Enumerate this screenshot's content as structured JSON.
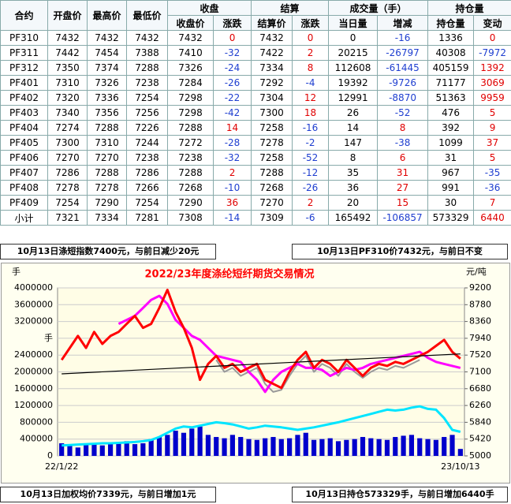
{
  "table": {
    "header_groups": [
      "收盘",
      "结算",
      "成交量（手）",
      "持仓量"
    ],
    "columns": [
      "合约",
      "开盘价",
      "最高价",
      "最低价",
      "收盘价",
      "涨跌",
      "结算价",
      "涨跌",
      "当日量",
      "增减",
      "持仓量",
      "变动"
    ],
    "rows": [
      [
        "PF310",
        "7432",
        "7432",
        "7432",
        "7432",
        "0",
        "7432",
        "0",
        "0",
        "-16",
        "1336",
        "0"
      ],
      [
        "PF311",
        "7442",
        "7454",
        "7388",
        "7410",
        "-32",
        "7422",
        "2",
        "20215",
        "-26797",
        "40308",
        "-7972"
      ],
      [
        "PF312",
        "7350",
        "7374",
        "7288",
        "7326",
        "-24",
        "7334",
        "8",
        "112608",
        "-61445",
        "405159",
        "1392"
      ],
      [
        "PF401",
        "7310",
        "7326",
        "7238",
        "7284",
        "-26",
        "7292",
        "-4",
        "19392",
        "-9726",
        "71177",
        "3069"
      ],
      [
        "PF402",
        "7320",
        "7336",
        "7254",
        "7298",
        "-22",
        "7304",
        "12",
        "12991",
        "-8870",
        "51363",
        "9959"
      ],
      [
        "PF403",
        "7340",
        "7356",
        "7256",
        "7298",
        "-42",
        "7300",
        "18",
        "26",
        "-52",
        "476",
        "5"
      ],
      [
        "PF404",
        "7274",
        "7288",
        "7226",
        "7288",
        "14",
        "7258",
        "-16",
        "14",
        "8",
        "392",
        "9"
      ],
      [
        "PF405",
        "7300",
        "7310",
        "7244",
        "7272",
        "-28",
        "7278",
        "-2",
        "147",
        "-38",
        "1099",
        "37"
      ],
      [
        "PF406",
        "7270",
        "7270",
        "7238",
        "7238",
        "-32",
        "7258",
        "-52",
        "8",
        "6",
        "31",
        "5"
      ],
      [
        "PF407",
        "7286",
        "7288",
        "7286",
        "7288",
        "2",
        "7288",
        "-12",
        "35",
        "31",
        "967",
        "-35"
      ],
      [
        "PF408",
        "7278",
        "7278",
        "7266",
        "7268",
        "-10",
        "7268",
        "-26",
        "36",
        "27",
        "991",
        "-36"
      ],
      [
        "PF409",
        "7254",
        "7290",
        "7254",
        "7290",
        "36",
        "7270",
        "2",
        "20",
        "15",
        "30",
        "7"
      ],
      [
        "小计",
        "7321",
        "7334",
        "7281",
        "7308",
        "-14",
        "7309",
        "-6",
        "165492",
        "-106857",
        "573329",
        "6440"
      ]
    ]
  },
  "notes": [
    "10月13日涤短指数7400元，与前日减少20元",
    "10月13日PF310价7432元，与前日不变",
    "10月13日加权均价7339元，与前日增加1元",
    "10月13日持仓573329手，与前日增加6440手"
  ],
  "chart_data": {
    "type": "line",
    "title": "2022/23年度涤纶短纤期货交易情况",
    "ylabel": "手",
    "y2label": "元/吨",
    "categories": [
      "22/1/22",
      null,
      null,
      null,
      null,
      null,
      null,
      null,
      null,
      null,
      null,
      null,
      null,
      null,
      null,
      null,
      null,
      null,
      null,
      null,
      null,
      null,
      null,
      null,
      null,
      null,
      null,
      null,
      null,
      null,
      null,
      null,
      null,
      null,
      null,
      null,
      null,
      null,
      null,
      null,
      null,
      null,
      null,
      null,
      null,
      null,
      null,
      null,
      null,
      "23/10/13"
    ],
    "ylim": [
      0,
      4000000
    ],
    "yticks": [
      0,
      400000,
      800000,
      1200000,
      1600000,
      2000000,
      2400000,
      {
        "value": 2800000,
        "label": "手"
      },
      3200000,
      3600000,
      4000000
    ],
    "y2lim": [
      5000,
      9200
    ],
    "y2ticks": [
      5000,
      5420,
      5840,
      6260,
      6680,
      7100,
      7520,
      7940,
      8360,
      8780,
      9200
    ],
    "grid": true,
    "series": [
      {
        "type": "bar",
        "color": "#0000cc",
        "values": [
          300000,
          250000,
          200000,
          280000,
          300000,
          250000,
          320000,
          300000,
          350000,
          280000,
          300000,
          400000,
          450000,
          500000,
          600000,
          550000,
          650000,
          700000,
          500000,
          450000,
          420000,
          500000,
          450000,
          400000,
          380000,
          420000,
          450000,
          400000,
          420000,
          500000,
          550000,
          380000,
          400000,
          420000,
          350000,
          380000,
          400000,
          450000,
          420000,
          400000,
          380000,
          450000,
          480000,
          500000,
          420000,
          400000,
          380000,
          450000,
          500000,
          165492
        ]
      },
      {
        "type": "line",
        "color": "#00e5ff",
        "values": [
          250000,
          260000,
          270000,
          280000,
          290000,
          300000,
          300000,
          310000,
          320000,
          330000,
          350000,
          380000,
          450000,
          550000,
          650000,
          700000,
          680000,
          720000,
          760000,
          800000,
          780000,
          750000,
          700000,
          650000,
          680000,
          720000,
          700000,
          680000,
          650000,
          620000,
          650000,
          680000,
          720000,
          760000,
          800000,
          850000,
          900000,
          950000,
          1000000,
          1050000,
          1100000,
          1080000,
          1100000,
          1150000,
          1180000,
          1120000,
          1100000,
          900000,
          620000,
          573329
        ]
      },
      {
        "type": "line",
        "axis": "y2",
        "color": "#999999",
        "values": [
          null,
          null,
          null,
          null,
          null,
          null,
          null,
          null,
          null,
          null,
          null,
          null,
          null,
          null,
          null,
          null,
          null,
          null,
          null,
          7400,
          7100,
          7200,
          7000,
          7100,
          7200,
          6800,
          6600,
          6650,
          7000,
          7300,
          7500,
          7100,
          7300,
          7200,
          7000,
          7300,
          7100,
          6950,
          7100,
          7200,
          7150,
          7250,
          7200,
          7300,
          7400,
          null,
          null,
          null,
          null,
          null
        ]
      },
      {
        "type": "line",
        "axis": "y2",
        "color": "#ff00ff",
        "values": [
          null,
          null,
          null,
          null,
          null,
          null,
          null,
          8300,
          8400,
          8500,
          8700,
          8900,
          9000,
          8800,
          8400,
          8200,
          8000,
          7900,
          7700,
          7500,
          7450,
          7400,
          7350,
          7100,
          6900,
          6600,
          6900,
          7100,
          7200,
          7300,
          7200,
          7200,
          7150,
          7000,
          7100,
          7200,
          7150,
          7200,
          7300,
          7350,
          7400,
          7450,
          7500,
          7550,
          7600,
          7450,
          7350,
          7300,
          7250,
          7200
        ]
      },
      {
        "type": "line",
        "axis": "y2",
        "color": "#ff0000",
        "values": [
          7400,
          7700,
          8000,
          7700,
          8100,
          7800,
          8000,
          8100,
          8300,
          8500,
          8200,
          8300,
          8700,
          9150,
          8600,
          8200,
          7700,
          6900,
          7300,
          7500,
          7200,
          7300,
          7100,
          7200,
          7300,
          6900,
          6800,
          6700,
          7100,
          7400,
          7600,
          7200,
          7400,
          7300,
          7100,
          7400,
          7200,
          7000,
          7200,
          7300,
          7250,
          7350,
          7300,
          7400,
          7500,
          7600,
          7750,
          7900,
          7600,
          7432
        ]
      }
    ],
    "trend_line": {
      "color": "#000000",
      "values": [
        7050,
        7550
      ]
    }
  }
}
